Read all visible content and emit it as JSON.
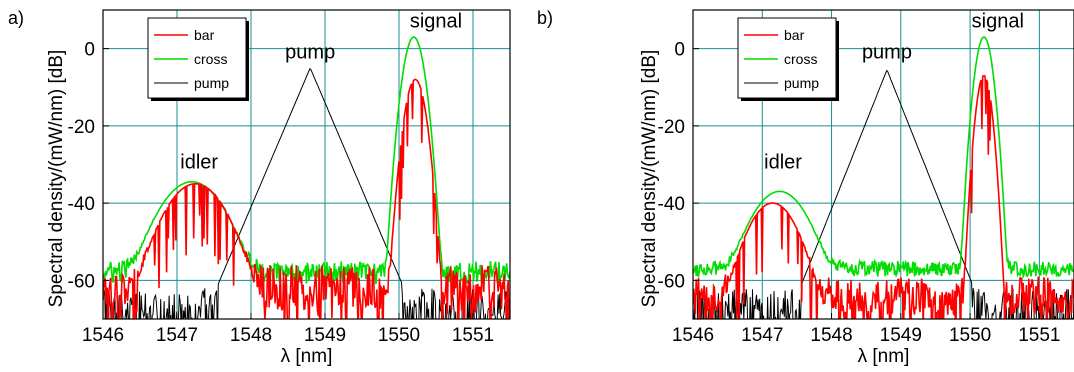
{
  "chart_data": [
    {
      "panel_label": "a)",
      "type": "line",
      "xlabel": "λ  [nm]",
      "ylabel": "Spectral density/(mW/nm)  [dB]",
      "xlim": [
        1546,
        1551.5
      ],
      "ylim": [
        -70,
        10
      ],
      "xticks": [
        1546,
        1547,
        1548,
        1549,
        1550,
        1551
      ],
      "yticks": [
        0,
        -20,
        -40,
        -60
      ],
      "grid": true,
      "legend_position": "top-left",
      "annotations": [
        {
          "text": "idler",
          "x": 1547.3,
          "y": -31
        },
        {
          "text": "pump",
          "x": 1548.8,
          "y": -2.5
        },
        {
          "text": "signal",
          "x": 1550.5,
          "y": 5.5
        }
      ],
      "series": [
        {
          "name": "bar",
          "color": "#ff0000",
          "shape": "noisy",
          "peaks": [
            {
              "x": 1547.25,
              "y": -35,
              "w": 0.32
            },
            {
              "x": 1550.22,
              "y": -8,
              "w": 0.1
            }
          ],
          "floor": -62,
          "noise": 6
        },
        {
          "name": "cross",
          "color": "#00dd00",
          "shape": "noisy",
          "peaks": [
            {
              "x": 1547.2,
              "y": -34.5,
              "w": 0.34
            },
            {
              "x": 1550.2,
              "y": 3,
              "w": 0.1
            }
          ],
          "floor": -58,
          "noise": 3
        },
        {
          "name": "pump",
          "color": "#000000",
          "shape": "pump",
          "center": 1548.8,
          "peak": -5,
          "slope": 45
        }
      ]
    },
    {
      "panel_label": "b)",
      "type": "line",
      "xlabel": "λ  [nm]",
      "ylabel": "Spectral density/(mW/nm)  [dB]",
      "xlim": [
        1546,
        1551.5
      ],
      "ylim": [
        -70,
        10
      ],
      "xticks": [
        1546,
        1547,
        1548,
        1549,
        1550,
        1551
      ],
      "yticks": [
        0,
        -20,
        -40,
        -60
      ],
      "grid": true,
      "legend_position": "top-left",
      "annotations": [
        {
          "text": "idler",
          "x": 1547.3,
          "y": -31
        },
        {
          "text": "pump",
          "x": 1548.8,
          "y": -2.5
        },
        {
          "text": "signal",
          "x": 1550.4,
          "y": 5.5
        }
      ],
      "series": [
        {
          "name": "bar",
          "color": "#ff0000",
          "shape": "noisy",
          "peaks": [
            {
              "x": 1547.15,
              "y": -40,
              "w": 0.28
            },
            {
              "x": 1550.2,
              "y": -7,
              "w": 0.08
            }
          ],
          "floor": -64,
          "noise": 5
        },
        {
          "name": "cross",
          "color": "#00dd00",
          "shape": "noisy",
          "peaks": [
            {
              "x": 1547.25,
              "y": -37,
              "w": 0.32
            },
            {
              "x": 1550.2,
              "y": 3,
              "w": 0.09
            }
          ],
          "floor": -57,
          "noise": 2
        },
        {
          "name": "pump",
          "color": "#000000",
          "shape": "pump",
          "center": 1548.8,
          "peak": -5.5,
          "slope": 45
        }
      ]
    }
  ]
}
